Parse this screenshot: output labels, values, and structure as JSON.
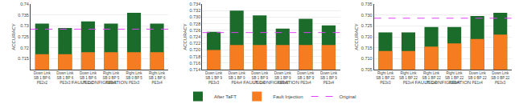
{
  "chart_data": [
    {
      "type": "bar",
      "xlabel": "FAULT CONFIGURATION",
      "ylabel": "ACCURACY",
      "categories": [
        "Down Link\nSB 1 BP 6\nPE2x2",
        "Down Link\nSB 1 BP 6\nPE3x3",
        "Down Link\nSB 1 BP 6\nPE2x2",
        "Right Link\nSB 0 BP 5\nPE3x3",
        "Right Link\nSB 0 BP 5\nPE3x3",
        "Right Link\nSB 1 BP 6\nPE3x4"
      ],
      "series": [
        {
          "name": "After TaFT",
          "color": "#1B6B2A",
          "values": [
            0.731,
            0.729,
            0.732,
            0.731,
            0.736,
            0.731
          ]
        },
        {
          "name": "Fault Injection",
          "color": "#F57C20",
          "values": [
            0.717,
            0.717,
            0.718,
            0.718,
            0.718,
            0.718
          ]
        },
        {
          "name": "Original",
          "type": "hline",
          "line_style": "dashed",
          "color": "#E040FB",
          "value": 0.7285
        }
      ],
      "ylim": [
        0.71,
        0.74
      ],
      "yticks": [
        0.715,
        0.72,
        0.725,
        0.73,
        0.735,
        0.74
      ],
      "grid": true,
      "legend": "bottom"
    },
    {
      "type": "bar",
      "xlabel": "FAULT CONFIGURATION",
      "ylabel": "ACCURACY",
      "categories": [
        "Down Link\nSB 1 BP 9\nPE3x3",
        "Down Link\nSB 1 BP 9\nPE4x4",
        "Down Link\nSB 1 BP 9\nPE1x4",
        "Down Link\nSB 1 BP 9\nPE3x3",
        "Down Link\nSB 1 BP 9\nPE3x4",
        "Down Link\nSB 1 BP 9\nPE3x4"
      ],
      "series": [
        {
          "name": "After TaFT",
          "color": "#1B6B2A",
          "values": [
            0.7255,
            0.732,
            0.7305,
            0.7265,
            0.7295,
            0.7275
          ]
        },
        {
          "name": "Fault Injection",
          "color": "#F57C20",
          "values": [
            0.72,
            0.7215,
            0.7215,
            0.7215,
            0.7215,
            0.7215
          ]
        },
        {
          "name": "Original",
          "type": "hline",
          "line_style": "dashed",
          "color": "#E040FB",
          "value": 0.7253
        }
      ],
      "ylim": [
        0.714,
        0.734
      ],
      "yticks": [
        0.714,
        0.716,
        0.718,
        {
          "value": 0.72,
          "label": "0.720"
        },
        0.722,
        0.724,
        0.726,
        0.728,
        {
          "value": 0.73,
          "label": "0.730"
        },
        0.732,
        0.734
      ],
      "grid": true,
      "legend": "bottom"
    },
    {
      "type": "bar",
      "xlabel": "FAULT CONFIGURATION",
      "ylabel": "ACCURACY",
      "categories": [
        "Right Link\nSB 1 BP 22\nPE3x3",
        "Right Link\nSB 1 BP 22\nPE3x4",
        "Right Link\nSB 1 BP 22\nPE1x4",
        "Right Link\nSB 1 BP 22\nPE1x4",
        "Down Link\nSB 0 BP 22\nPE1x4",
        "Down Link\nSB 0 BP 22\nPE3x3"
      ],
      "series": [
        {
          "name": "After TaFT",
          "color": "#1B6B2A",
          "values": [
            0.722,
            0.722,
            0.7245,
            0.7245,
            0.7295,
            0.731
          ]
        },
        {
          "name": "Fault Injection",
          "color": "#F57C20",
          "values": [
            0.7135,
            0.7135,
            0.7155,
            0.717,
            0.719,
            0.721
          ]
        },
        {
          "name": "Original",
          "type": "hline",
          "line_style": "dashed",
          "color": "#E040FB",
          "value": 0.7285
        }
      ],
      "ylim": [
        0.705,
        0.735
      ],
      "yticks": [
        0.705,
        {
          "value": 0.71,
          "label": "0.710"
        },
        0.715,
        {
          "value": 0.72,
          "label": "0.720"
        },
        0.725,
        {
          "value": 0.73,
          "label": "0.730"
        },
        0.735
      ],
      "grid": true,
      "legend": "bottom"
    }
  ]
}
